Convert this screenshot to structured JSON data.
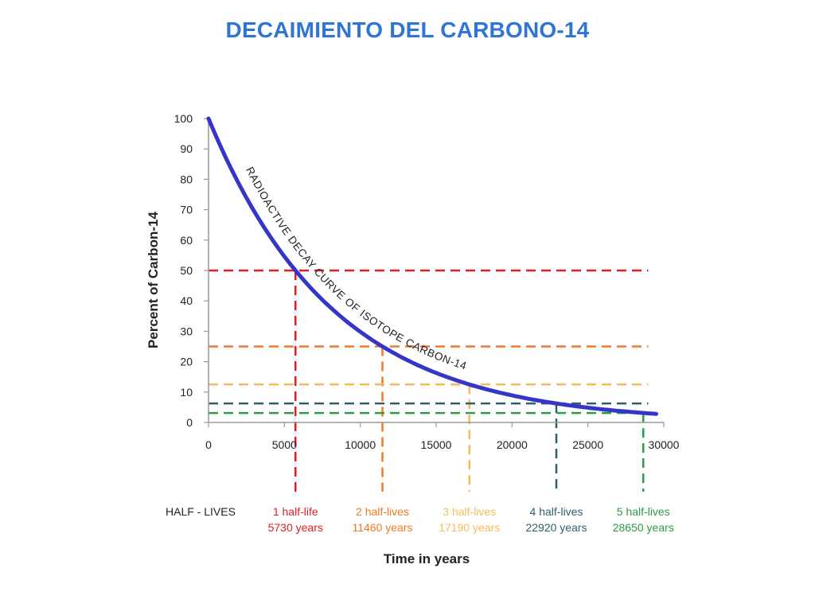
{
  "title": "DECAIMIENTO DEL CARBONO-14",
  "chart_data": {
    "type": "line",
    "title": "DECAIMIENTO DEL CARBONO-14",
    "xlabel": "Time in years",
    "ylabel": "Percent of Carbon-14",
    "xlim": [
      0,
      30000
    ],
    "ylim": [
      0,
      100
    ],
    "x_ticks": [
      0,
      5000,
      10000,
      15000,
      20000,
      25000,
      30000
    ],
    "y_ticks": [
      0,
      10,
      20,
      30,
      40,
      50,
      60,
      70,
      80,
      90,
      100
    ],
    "grid": false,
    "curve_label": "RADIOACTIVE DECAY CURVE OF ISOTOPE CARBON-14",
    "curve_color": "#3535c8",
    "half_life_years": 5730,
    "x": [
      0,
      1000,
      2000,
      3000,
      4000,
      5000,
      5730,
      7000,
      8000,
      9000,
      10000,
      11460,
      12000,
      14000,
      16000,
      17190,
      18000,
      20000,
      22000,
      22920,
      24000,
      26000,
      28000,
      28650,
      29500
    ],
    "y": [
      100,
      88.6,
      78.5,
      69.6,
      61.6,
      54.6,
      50,
      42.9,
      38.0,
      33.7,
      29.8,
      25,
      23.4,
      18.4,
      14.4,
      12.5,
      11.3,
      8.9,
      7.0,
      6.25,
      5.5,
      4.3,
      3.4,
      3.125,
      2.8
    ],
    "half_lives_row_label": "HALF - LIVES",
    "half_lives": [
      {
        "x": 5730,
        "y": 50,
        "label": "1 half-life",
        "years_label": "5730 years",
        "color": "#e02020"
      },
      {
        "x": 11460,
        "y": 25,
        "label": "2 half-lives",
        "years_label": "11460 years",
        "color": "#f07a2a"
      },
      {
        "x": 17190,
        "y": 12.5,
        "label": "3 half-lives",
        "years_label": "17190 years",
        "color": "#f8bb5c"
      },
      {
        "x": 22920,
        "y": 6.25,
        "label": "4 half-lives",
        "years_label": "22920 years",
        "color": "#2f5f6a"
      },
      {
        "x": 28650,
        "y": 3.125,
        "label": "5 half-lives",
        "years_label": "28650 years",
        "color": "#2e9a4a"
      }
    ]
  }
}
